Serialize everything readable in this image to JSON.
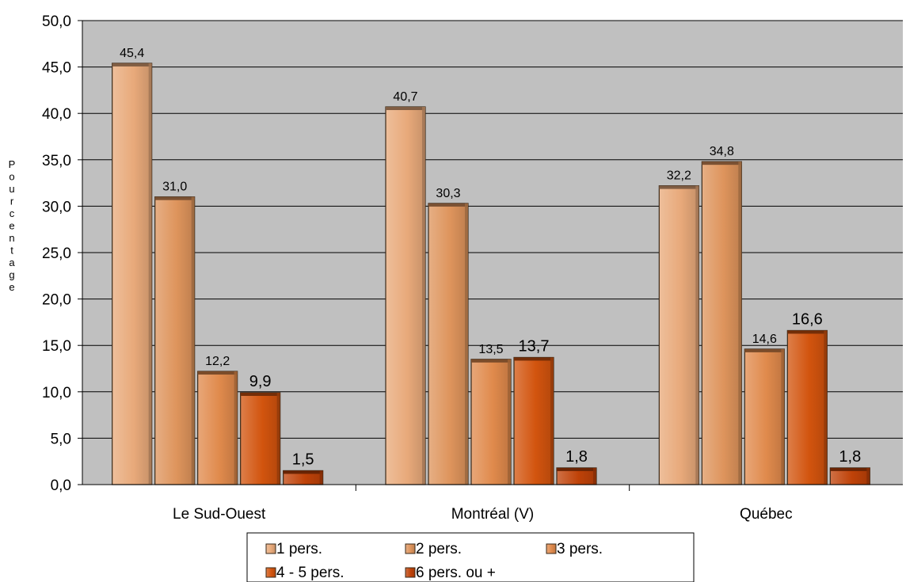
{
  "chart_data": {
    "type": "bar",
    "categories": [
      "Le Sud-Ouest",
      "Montréal (V)",
      "Québec"
    ],
    "series": [
      {
        "name": "1 pers.",
        "values": [
          45.4,
          40.7,
          32.2
        ],
        "color": "#E8A97A"
      },
      {
        "name": "2 pers.",
        "values": [
          31.0,
          30.3,
          34.8
        ],
        "color": "#DE945C"
      },
      {
        "name": "3 pers.",
        "values": [
          12.2,
          13.5,
          14.6
        ],
        "color": "#E08A4C"
      },
      {
        "name": "4 - 5 pers.",
        "values": [
          9.9,
          13.7,
          16.6
        ],
        "color": "#D2540E"
      },
      {
        "name": "6 pers. ou +",
        "values": [
          1.5,
          1.8,
          1.8
        ],
        "color": "#BF4208"
      }
    ],
    "value_labels": [
      [
        "45,4",
        "40,7",
        "32,2"
      ],
      [
        "31,0",
        "30,3",
        "34,8"
      ],
      [
        "12,2",
        "13,5",
        "14,6"
      ],
      [
        "9,9",
        "13,7",
        "16,6"
      ],
      [
        "1,5",
        "1,8",
        "1,8"
      ]
    ],
    "y_ticks": [
      "0,0",
      "5,0",
      "10,0",
      "15,0",
      "20,0",
      "25,0",
      "30,0",
      "35,0",
      "40,0",
      "45,0",
      "50,0"
    ],
    "ylim": [
      0,
      50
    ],
    "ylabel": "Pourcentage",
    "xlabel": "",
    "title": "",
    "grid": true,
    "legend_position": "bottom",
    "plot_background": "#C0C0C0"
  }
}
